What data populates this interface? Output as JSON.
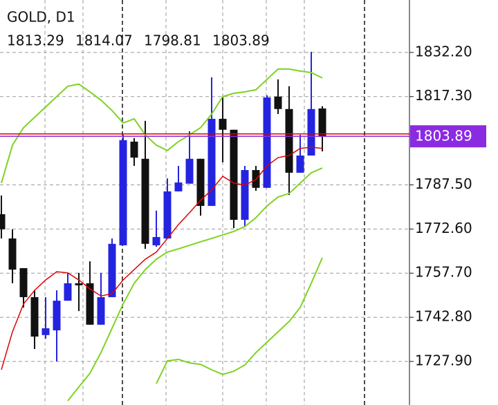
{
  "chart_data": {
    "type": "candlestick",
    "title": "GOLD, D1",
    "open": [
      1777.6,
      1769.4,
      1759.4,
      1749.6,
      1736.8,
      1738.4,
      1748.4,
      1754.3,
      1754.3,
      1740.3,
      1749.6,
      1767.1,
      1802.1,
      1796.3,
      1767.1,
      1769.4,
      1785.3,
      1787.9,
      1796.3,
      1780.4,
      1809.8,
      1806.1,
      1775.7,
      1792.5,
      1786.5,
      1817.3,
      1813.1,
      1791.6,
      1797.4,
      1813.29
    ],
    "high": [
      1783.9,
      1772.5,
      1759.4,
      1751.9,
      1749.6,
      1751.9,
      1757.8,
      1757.8,
      1761.7,
      1757.8,
      1769.4,
      1804.4,
      1803.3,
      1809.1,
      1778.8,
      1789.7,
      1793.9,
      1805.6,
      1796.3,
      1823.8,
      1817.3,
      1806.1,
      1793.9,
      1793.9,
      1817.7,
      1823.1,
      1820.8,
      1804.4,
      1832.4,
      1814.07
    ],
    "low": [
      1769.4,
      1754.3,
      1746.1,
      1732.1,
      1735.6,
      1727.9,
      1748.4,
      1744.9,
      1740.3,
      1740.3,
      1749.6,
      1767.1,
      1793.9,
      1765.9,
      1766.6,
      1769.4,
      1785.3,
      1787.9,
      1777.1,
      1780.4,
      1795.1,
      1772.9,
      1773.4,
      1785.5,
      1786.5,
      1811.4,
      1784.1,
      1791.6,
      1797.4,
      1798.81
    ],
    "close": [
      1772.5,
      1758.9,
      1749.6,
      1736.3,
      1739.1,
      1748.4,
      1754.3,
      1753.6,
      1740.3,
      1749.6,
      1767.6,
      1802.6,
      1796.7,
      1767.6,
      1769.9,
      1785.3,
      1788.3,
      1796.3,
      1780.4,
      1809.8,
      1806.1,
      1775.7,
      1792.5,
      1786.5,
      1817.0,
      1813.1,
      1791.6,
      1797.4,
      1813.1,
      1803.89
    ],
    "up_color": "#2424e0",
    "down_color": "#111111",
    "lines": [
      {
        "color": "#7ed321",
        "values": [
          1788.1,
          1800.9,
          1806.8,
          1810.3,
          1813.8,
          1817.3,
          1820.8,
          1821.5,
          1818.9,
          1816.1,
          1812.6,
          1808.4,
          1809.8,
          1804.4,
          1800.9,
          1799.1,
          1802.1,
          1804.4,
          1806.8,
          1811.4,
          1817.3,
          1818.4,
          1818.9,
          1819.6,
          1823.1,
          1826.6,
          1826.6,
          1825.9,
          1825.4,
          1823.6
        ]
      },
      {
        "color": "#7ed321",
        "values": [
          null,
          null,
          null,
          null,
          null,
          null,
          1714.6,
          1719.3,
          1723.9,
          1730.9,
          1739.1,
          1747.3,
          1754.3,
          1758.9,
          1762.4,
          1764.8,
          1765.9,
          1767.1,
          1768.3,
          1769.4,
          1770.6,
          1771.8,
          1773.4,
          1776.4,
          1780.4,
          1783.4,
          1784.6,
          1788.1,
          1791.6,
          1793.2
        ]
      },
      {
        "color": "#7ed321",
        "values": [
          null,
          null,
          null,
          null,
          null,
          null,
          null,
          null,
          null,
          null,
          null,
          null,
          null,
          null,
          1720.4,
          1728.1,
          1728.6,
          1727.4,
          1726.9,
          1725.1,
          1723.5,
          1724.6,
          1726.7,
          1730.9,
          1734.4,
          1737.9,
          1741.4,
          1746.1,
          1754.3,
          1762.9
        ]
      },
      {
        "color": "#dd0000",
        "values": [
          1725.1,
          1737.9,
          1747.3,
          1751.9,
          1755.4,
          1758.2,
          1757.8,
          1755.4,
          1752.4,
          1750.0,
          1750.8,
          1755.4,
          1758.9,
          1762.4,
          1764.8,
          1769.4,
          1774.1,
          1778.1,
          1782.3,
          1785.8,
          1790.4,
          1788.1,
          1787.4,
          1789.3,
          1793.9,
          1796.7,
          1797.4,
          1799.8,
          1800.2,
          1799.8
        ]
      }
    ],
    "price_lines": [
      {
        "value": 1803.89,
        "color": "#8a2be2"
      },
      {
        "value": 1804.7,
        "color": "#dd0000"
      }
    ],
    "ylim": [
      1713.2,
      1849.9
    ],
    "yticks": [
      {
        "value": 1832.2,
        "label": "1832.20"
      },
      {
        "value": 1817.3,
        "label": "1817.30"
      },
      {
        "value": 1787.5,
        "label": "1787.50"
      },
      {
        "value": 1772.6,
        "label": "1772.60"
      },
      {
        "value": 1757.7,
        "label": "1757.70"
      },
      {
        "value": 1742.8,
        "label": "1742.80"
      },
      {
        "value": 1727.9,
        "label": "1727.90"
      }
    ],
    "grid": true
  }
}
